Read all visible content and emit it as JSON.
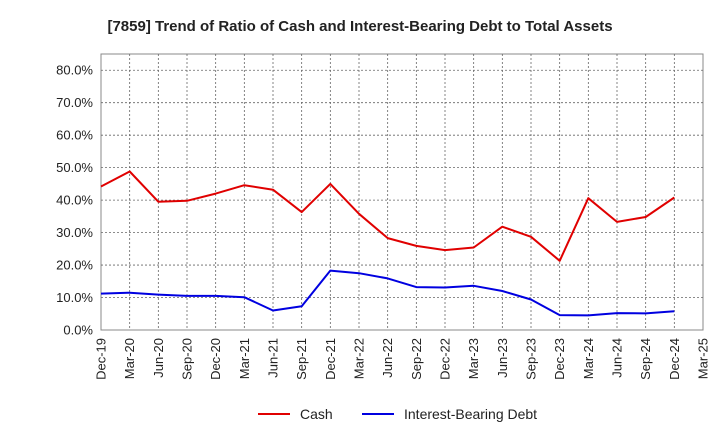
{
  "chart_data": {
    "type": "line",
    "title": "[7859]  Trend of Ratio of Cash and Interest-Bearing Debt to Total Assets",
    "xlabel": "",
    "ylabel": "",
    "ylim": [
      0,
      85
    ],
    "yticks": [
      "0.0%",
      "10.0%",
      "20.0%",
      "30.0%",
      "40.0%",
      "50.0%",
      "60.0%",
      "70.0%",
      "80.0%"
    ],
    "categories": [
      "Dec-19",
      "Mar-20",
      "Jun-20",
      "Sep-20",
      "Dec-20",
      "Mar-21",
      "Jun-21",
      "Sep-21",
      "Dec-21",
      "Mar-22",
      "Jun-22",
      "Sep-22",
      "Dec-22",
      "Mar-23",
      "Jun-23",
      "Sep-23",
      "Dec-23",
      "Mar-24",
      "Jun-24",
      "Sep-24",
      "Dec-24",
      "Mar-25"
    ],
    "grid": true,
    "legend_position": "bottom",
    "series": [
      {
        "name": "Cash",
        "color": "#e00000",
        "values": [
          44.2,
          48.8,
          39.5,
          39.8,
          42.0,
          44.6,
          43.2,
          36.3,
          45.0,
          35.8,
          28.3,
          25.9,
          24.6,
          25.4,
          31.8,
          28.7,
          21.3,
          40.6,
          33.3,
          34.8,
          40.8,
          null
        ]
      },
      {
        "name": "Interest-Bearing Debt",
        "color": "#0000e0",
        "values": [
          11.2,
          11.5,
          10.9,
          10.5,
          10.5,
          10.1,
          6.0,
          7.3,
          18.3,
          17.5,
          15.9,
          13.2,
          13.1,
          13.6,
          12.0,
          9.4,
          4.6,
          4.5,
          5.2,
          5.1,
          5.8,
          null
        ]
      }
    ]
  }
}
